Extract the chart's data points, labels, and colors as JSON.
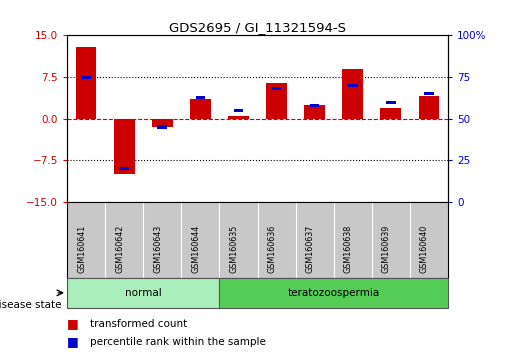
{
  "title": "GDS2695 / GI_11321594-S",
  "samples": [
    "GSM160641",
    "GSM160642",
    "GSM160643",
    "GSM160644",
    "GSM160635",
    "GSM160636",
    "GSM160637",
    "GSM160638",
    "GSM160639",
    "GSM160640"
  ],
  "red_values": [
    13.0,
    -10.0,
    -1.5,
    3.5,
    0.5,
    6.5,
    2.5,
    9.0,
    2.0,
    4.0
  ],
  "blue_values_raw": [
    75,
    20,
    45,
    63,
    55,
    68,
    58,
    70,
    60,
    65
  ],
  "ylim_left": [
    -15,
    15
  ],
  "ylim_right": [
    0,
    100
  ],
  "yticks_left": [
    -15,
    -7.5,
    0,
    7.5,
    15
  ],
  "yticks_right": [
    0,
    25,
    50,
    75,
    100
  ],
  "groups": [
    {
      "label": "normal",
      "indices": [
        0,
        1,
        2,
        3
      ],
      "color": "#90EE90"
    },
    {
      "label": "teratozoospermia",
      "indices": [
        4,
        5,
        6,
        7,
        8,
        9
      ],
      "color": "#44DD44"
    }
  ],
  "red_color": "#CC0000",
  "blue_color": "#0000CC",
  "bg_color": "#FFFFFF",
  "plot_bg": "#FFFFFF",
  "axis_label_left_color": "#CC0000",
  "axis_label_right_color": "#0000CC",
  "disease_state_label": "disease state",
  "legend_red": "transformed count",
  "legend_blue": "percentile rank within the sample",
  "zero_line_color": "#CC0000",
  "normal_group_color": "#AAEEBB",
  "terato_group_color": "#44CC44"
}
